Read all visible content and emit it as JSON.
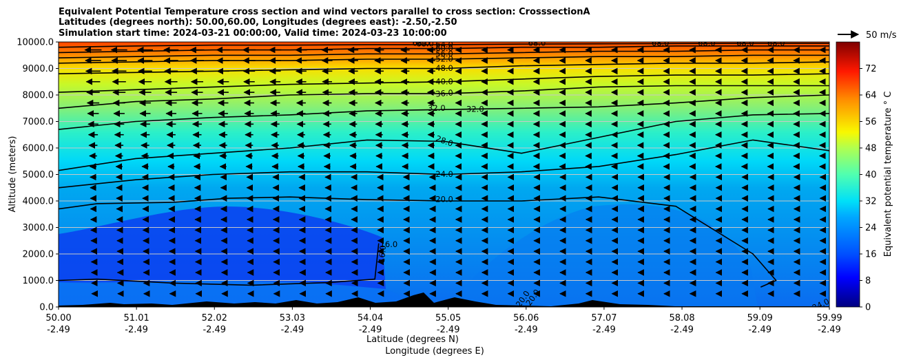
{
  "chart_data": {
    "type": "heatmap",
    "title": [
      "Equivalent Potential Temperature cross section and wind vectors parallel to cross section: CrosssectionA",
      "Latitudes (degrees north): 50.00,60.00, Longitudes (degrees east): -2.50,-2.50",
      "Simulation start time: 2024-03-21 00:00:00, Valid time: 2024-03-23 10:00:00"
    ],
    "ylabel": "Altitude (meters)",
    "xlabel_1": "Latitude (degrees N)",
    "xlabel_2": "Longitude (degrees E)",
    "xlim": [
      50.0,
      59.99
    ],
    "ylim": [
      0,
      10000
    ],
    "grid": "horizontal",
    "x_ticks": [
      {
        "lat": "50.00",
        "lon": "-2.49"
      },
      {
        "lat": "51.01",
        "lon": "-2.49"
      },
      {
        "lat": "52.02",
        "lon": "-2.49"
      },
      {
        "lat": "53.03",
        "lon": "-2.49"
      },
      {
        "lat": "54.04",
        "lon": "-2.49"
      },
      {
        "lat": "55.05",
        "lon": "-2.49"
      },
      {
        "lat": "56.06",
        "lon": "-2.49"
      },
      {
        "lat": "57.07",
        "lon": "-2.49"
      },
      {
        "lat": "58.08",
        "lon": "-2.49"
      },
      {
        "lat": "59.09",
        "lon": "-2.49"
      },
      {
        "lat": "59.99",
        "lon": "-2.49"
      }
    ],
    "y_ticks": [
      "0.0",
      "1000.0",
      "2000.0",
      "3000.0",
      "4000.0",
      "5000.0",
      "6000.0",
      "7000.0",
      "8000.0",
      "9000.0",
      "10000.0"
    ],
    "colorbar": {
      "label": "Equivalent potential temperature $^\\circ$C",
      "range": [
        0,
        80
      ],
      "ticks": [
        "0",
        "8",
        "16",
        "24",
        "32",
        "40",
        "48",
        "56",
        "64",
        "72"
      ]
    },
    "wind_key_label": "50 m/s",
    "wind_vectors": "mostly southward (pointing left), roughly 15-25 m/s aloft above 5000 m, 5-10 m/s in lower layers",
    "contours": [
      {
        "level": 16,
        "label": "16.0",
        "levels_shown": [
          "16.0",
          "16.0"
        ]
      },
      {
        "level": 20,
        "label": "20.0"
      },
      {
        "level": 24,
        "label": "24.0"
      },
      {
        "level": 28,
        "label": "28.0"
      },
      {
        "level": 32,
        "label": "32.0",
        "levels_shown": [
          "32.0",
          "32.0"
        ]
      },
      {
        "level": 36,
        "label": "36.0"
      },
      {
        "level": 40,
        "label": "40.0"
      },
      {
        "level": 48,
        "label": "48.0"
      },
      {
        "level": 52,
        "label": "52.0"
      },
      {
        "level": 56,
        "label": "56.0"
      },
      {
        "level": 60,
        "label": "60.0"
      },
      {
        "level": 64,
        "label": "64.0"
      },
      {
        "level": 68,
        "label": "68.0"
      }
    ],
    "extra_labels": [
      "68.0",
      "68.0",
      "68.0",
      "68.0",
      "68.0",
      "68.0",
      "20.0",
      "20.0",
      "24.0"
    ]
  }
}
